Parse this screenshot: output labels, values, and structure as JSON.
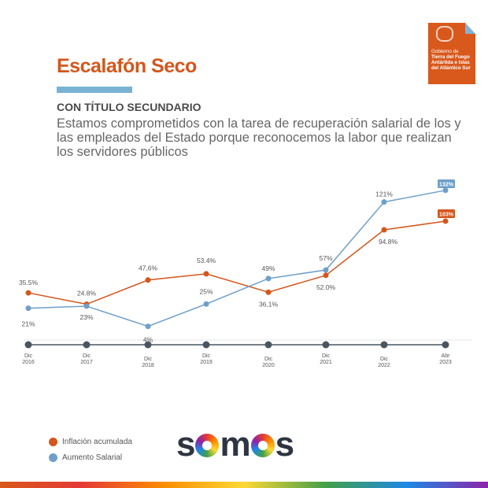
{
  "header": {
    "title": "Escalafón Seco",
    "subtitle": "CON TÍTULO SECUNDARIO",
    "description": "Estamos comprometidos con la tarea de recuperación salarial de los y las empleados del Estado porque reconocemos la labor que realizan los servidores públicos"
  },
  "logo": {
    "line1": "Gobierno de",
    "line2": "Tierra del Fuego",
    "line3": "Antártida e Islas",
    "line4": "del Atlántico Sur"
  },
  "footer_logo": {
    "text": "somos"
  },
  "colors": {
    "inflation": "#d4561c",
    "salary": "#6f9fc9",
    "axis": "#4a5560"
  },
  "chart_data": {
    "type": "line",
    "categories": [
      [
        "Dic",
        "2016"
      ],
      [
        "Dic",
        "2017"
      ],
      [
        "Dic",
        "2018"
      ],
      [
        "Dic",
        "2019"
      ],
      [
        "Dic",
        "2020"
      ],
      [
        "Dic",
        "2021"
      ],
      [
        "Dic",
        "2022"
      ],
      [
        "Abr",
        "2023"
      ]
    ],
    "series": [
      {
        "name": "Inflación acumulada",
        "values": [
          35.5,
          24.8,
          47.6,
          53.4,
          36.1,
          52.0,
          94.8,
          103
        ],
        "labels": [
          "35.5%",
          "24.8%",
          "47,6%",
          "53.4%",
          "36,1%",
          "52.0%",
          "94.8%",
          "103%"
        ]
      },
      {
        "name": "Aumento Salarial",
        "values": [
          21,
          23,
          4,
          25,
          49,
          57,
          121,
          132
        ],
        "labels": [
          "21%",
          "23%",
          "4%",
          "25%",
          "49%",
          "57%",
          "121%",
          "132%"
        ]
      }
    ],
    "legend": "bottom-left"
  }
}
